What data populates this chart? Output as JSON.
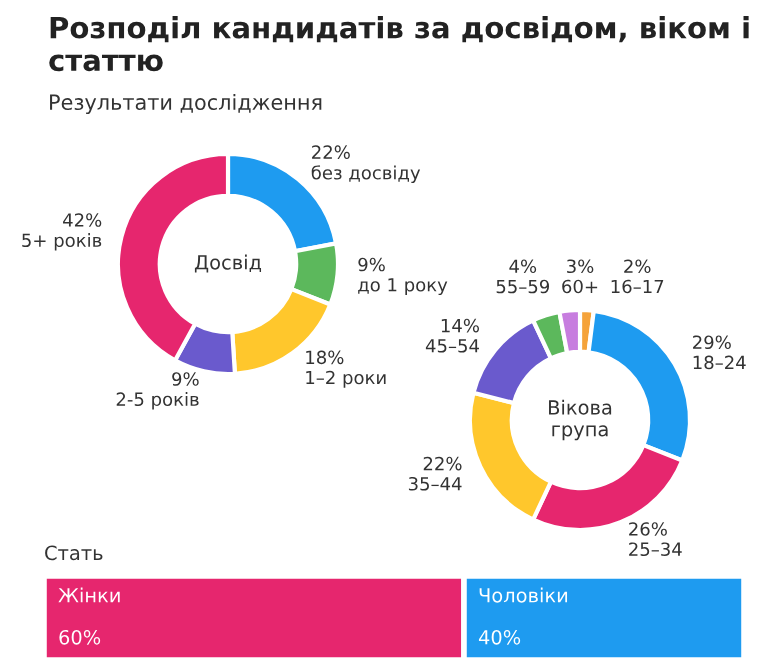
{
  "chart_data": [
    {
      "type": "donut",
      "title": "Розподіл кандидатів за досвідом, віком і статтю",
      "subtitle": "Результати дослідження",
      "annotations": [
        "Досвід"
      ],
      "categories": [
        "без досвіду",
        "до 1 року",
        "1–2 роки",
        "2-5 років",
        "5+ років"
      ],
      "values": [
        22,
        9,
        18,
        9,
        42
      ],
      "colors": [
        "#1e9bf0",
        "#5cb85c",
        "#ffc72c",
        "#6a5acd",
        "#e6266e"
      ],
      "value_labels": [
        "22%",
        "9%",
        "18%",
        "9%",
        "42%"
      ]
    },
    {
      "type": "donut",
      "annotations": [
        "Вікова група"
      ],
      "categories": [
        "16–17",
        "18–24",
        "25–34",
        "35–44",
        "45–54",
        "55–59",
        "60+"
      ],
      "values": [
        2,
        29,
        26,
        22,
        14,
        4,
        3
      ],
      "colors": [
        "#f5a33a",
        "#1e9bf0",
        "#e6266e",
        "#ffc72c",
        "#6a5acd",
        "#5cb85c",
        "#c77ddf"
      ],
      "value_labels": [
        "2%",
        "29%",
        "26%",
        "22%",
        "14%",
        "4%",
        "3%"
      ]
    },
    {
      "type": "bar",
      "orientation": "horizontal",
      "stacked": true,
      "title": "Стать",
      "categories": [
        null
      ],
      "series": [
        {
          "name": "Жінки",
          "color": "#e6266e",
          "values": [
            60
          ],
          "value_labels": [
            "60%"
          ]
        },
        {
          "name": "Чоловіки",
          "color": "#1e9bf0",
          "values": [
            40
          ],
          "value_labels": [
            "40%"
          ]
        }
      ]
    }
  ]
}
